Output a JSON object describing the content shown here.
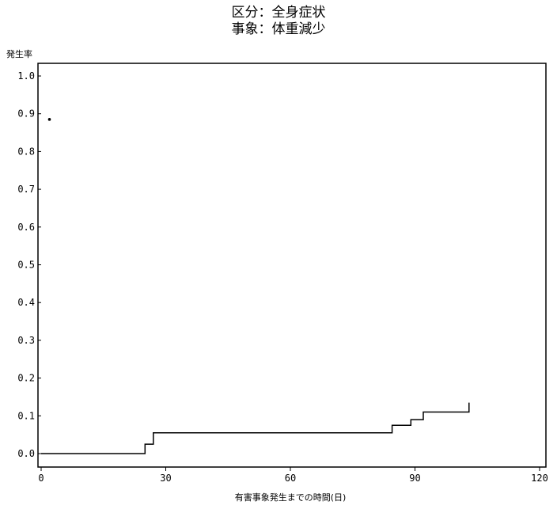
{
  "chart_data": {
    "type": "line",
    "step": true,
    "title": "区分：全身症状",
    "subtitle": "事象：体重減少",
    "ylabel": "発生率",
    "xlabel": "有害事象発生までの時間(日)",
    "xlim": [
      0,
      120
    ],
    "ylim": [
      0,
      1.0
    ],
    "x_ticks": [
      0,
      30,
      60,
      90,
      120
    ],
    "x_tick_labels": [
      "0",
      "30",
      "60",
      "90",
      "120"
    ],
    "y_ticks": [
      0,
      0.1,
      0.2,
      0.3,
      0.4,
      0.5,
      0.6,
      0.7,
      0.8,
      0.9,
      1.0
    ],
    "y_tick_labels": [
      "0.0",
      "0.1",
      "0.2",
      "0.3",
      "0.4",
      "0.5",
      "0.6",
      "0.7",
      "0.8",
      "0.9",
      "1.0"
    ],
    "grid": false,
    "series": [
      {
        "color": "#000000",
        "points": [
          [
            0,
            0.0
          ],
          [
            25,
            0.0
          ],
          [
            25,
            0.025
          ],
          [
            27,
            0.025
          ],
          [
            27,
            0.055
          ],
          [
            84.5,
            0.055
          ],
          [
            84.5,
            0.075
          ],
          [
            89,
            0.075
          ],
          [
            89,
            0.09
          ],
          [
            92,
            0.09
          ],
          [
            92,
            0.11
          ],
          [
            103,
            0.11
          ],
          [
            103,
            0.135
          ]
        ]
      }
    ],
    "marker": {
      "x": 2,
      "y": 0.885
    }
  }
}
